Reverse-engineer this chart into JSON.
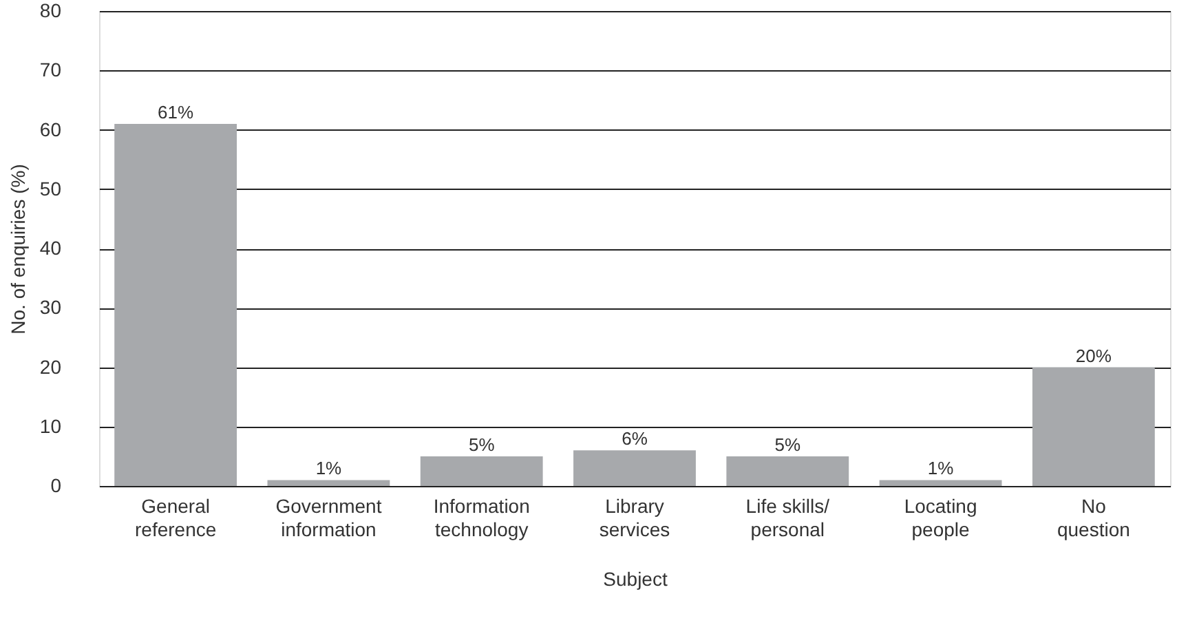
{
  "chart_data": {
    "type": "bar",
    "categories": [
      "General reference",
      "Government information",
      "Information technology",
      "Library services",
      "Life skills/ personal",
      "Locating people",
      "No question"
    ],
    "values": [
      61,
      1,
      5,
      6,
      5,
      1,
      20
    ],
    "value_labels": [
      "61%",
      "1%",
      "5%",
      "6%",
      "5%",
      "1%",
      "20%"
    ],
    "color": "#a7a9ac",
    "xlabel": "Subject",
    "ylabel": "No. of enquiries (%)",
    "ylim": [
      0,
      80
    ],
    "yticks": [
      0,
      10,
      20,
      30,
      40,
      50,
      60,
      70,
      80
    ],
    "grid": "y"
  }
}
